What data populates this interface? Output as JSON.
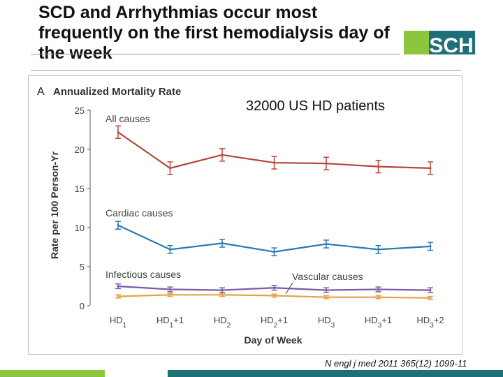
{
  "slide": {
    "title": "SCD and Arrhythmias occur most frequently on the first hemodialysis day of the week",
    "logo_text": "SCH",
    "annotation": "32000 US HD patients",
    "citation": "N engl j med 2011 365(12) 1099-11"
  },
  "colors": {
    "logo_green": "#8cc63f",
    "logo_teal": "#1f6f78",
    "all_causes": "#b5473a",
    "cardiac": "#2a7ab0",
    "infectious": "#7b5aa6",
    "vascular": "#e8a040",
    "bar_teal": "#1f6f78",
    "bar_green": "#8cc63f"
  },
  "chart_data": {
    "type": "line",
    "panel_label": "A",
    "title": "Annualized Mortality Rate",
    "xlabel": "Day of Week",
    "ylabel": "Rate per 100 Person-Yr",
    "ylim": [
      0,
      25
    ],
    "yticks": [
      0,
      5,
      10,
      15,
      20,
      25
    ],
    "categories": [
      {
        "base": "HD",
        "sub": "1",
        "suffix": ""
      },
      {
        "base": "HD",
        "sub": "1",
        "suffix": "+1"
      },
      {
        "base": "HD",
        "sub": "2",
        "suffix": ""
      },
      {
        "base": "HD",
        "sub": "2",
        "suffix": "+1"
      },
      {
        "base": "HD",
        "sub": "3",
        "suffix": ""
      },
      {
        "base": "HD",
        "sub": "3",
        "suffix": "+1"
      },
      {
        "base": "HD",
        "sub": "3",
        "suffix": "+2"
      }
    ],
    "series": [
      {
        "name": "All causes",
        "color": "#b5473a",
        "values": [
          22.2,
          17.6,
          19.3,
          18.3,
          18.2,
          17.8,
          17.6
        ],
        "err": [
          0.8,
          0.8,
          0.8,
          0.8,
          0.8,
          0.8,
          0.8
        ]
      },
      {
        "name": "Cardiac causes",
        "color": "#2a7ab0",
        "values": [
          10.3,
          7.2,
          8.0,
          6.9,
          7.9,
          7.2,
          7.6
        ],
        "err": [
          0.5,
          0.5,
          0.5,
          0.5,
          0.5,
          0.5,
          0.5
        ]
      },
      {
        "name": "Infectious causes",
        "color": "#7b5aa6",
        "values": [
          2.5,
          2.1,
          2.0,
          2.3,
          2.0,
          2.1,
          2.0
        ],
        "err": [
          0.3,
          0.3,
          0.3,
          0.3,
          0.3,
          0.3,
          0.3
        ]
      },
      {
        "name": "Vascular causes",
        "color": "#e8a040",
        "values": [
          1.2,
          1.4,
          1.4,
          1.3,
          1.1,
          1.1,
          1.0
        ],
        "err": [
          0.2,
          0.2,
          0.2,
          0.2,
          0.2,
          0.2,
          0.2
        ]
      }
    ],
    "grid": false
  }
}
